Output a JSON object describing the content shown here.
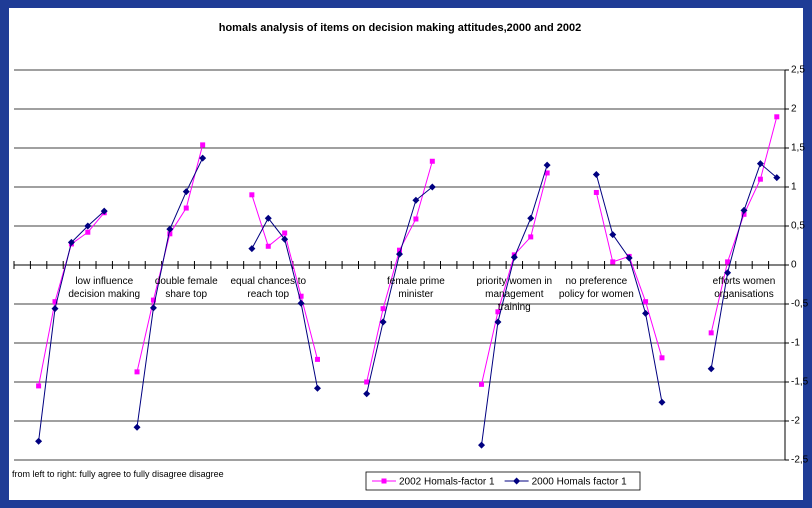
{
  "chart_data": {
    "type": "line",
    "title": "homals analysis of items on decision making attitudes,2000 and 2002",
    "note": "from left to right: fully agree to fully disagree disagree",
    "categories": [
      null,
      null,
      null,
      null,
      null,
      "low influence decision making",
      null,
      null,
      null,
      null,
      "double female share top",
      null,
      null,
      null,
      null,
      "equal chances to reach top",
      null,
      null,
      null,
      null,
      null,
      null,
      null,
      null,
      "female prime minister",
      null,
      null,
      null,
      null,
      null,
      "priority women in management training",
      null,
      null,
      null,
      null,
      "no preference policy for women",
      null,
      null,
      null,
      null,
      null,
      null,
      null,
      null,
      "efforts women organisations",
      null,
      null
    ],
    "series": [
      {
        "name": "2002 Homals-factor 1",
        "color": "#ff00ff",
        "marker": "square",
        "values": [
          null,
          -1.55,
          -0.47,
          0.27,
          0.42,
          0.67,
          null,
          -1.37,
          -0.45,
          0.4,
          0.73,
          1.54,
          null,
          null,
          0.9,
          0.24,
          0.41,
          -0.4,
          -1.21,
          null,
          null,
          -1.5,
          -0.56,
          0.19,
          0.59,
          1.33,
          null,
          null,
          -1.53,
          -0.6,
          0.13,
          0.36,
          1.18,
          null,
          null,
          0.93,
          0.04,
          0.11,
          -0.47,
          -1.19,
          null,
          null,
          -0.87,
          0.04,
          0.65,
          1.1,
          1.9
        ]
      },
      {
        "name": "2000 Homals factor 1",
        "color": "#000080",
        "marker": "diamond",
        "values": [
          null,
          -2.26,
          -0.56,
          0.29,
          0.5,
          0.69,
          null,
          -2.08,
          -0.55,
          0.46,
          0.94,
          1.37,
          null,
          null,
          0.21,
          0.6,
          0.33,
          -0.49,
          -1.58,
          null,
          null,
          -1.65,
          -0.73,
          0.14,
          0.83,
          1.0,
          null,
          null,
          -2.31,
          -0.73,
          0.1,
          0.6,
          1.28,
          null,
          null,
          1.16,
          0.39,
          0.09,
          -0.62,
          -1.76,
          null,
          null,
          -1.33,
          -0.1,
          0.7,
          1.3,
          1.12
        ]
      }
    ],
    "ylim": [
      -2.5,
      2.5
    ],
    "yticks": [
      {
        "value": -2.5,
        "label": "-2,5"
      },
      -2,
      {
        "value": -1.5,
        "label": "-1,5"
      },
      -1,
      {
        "value": -0.5,
        "label": "-0,5"
      },
      0,
      {
        "value": 0.5,
        "label": "0,5"
      },
      1,
      {
        "value": 1.5,
        "label": "1,5"
      },
      2,
      {
        "value": 2.5,
        "label": "2,5"
      }
    ],
    "grid": true,
    "y_axis_side": "right",
    "legend": "bottom"
  }
}
